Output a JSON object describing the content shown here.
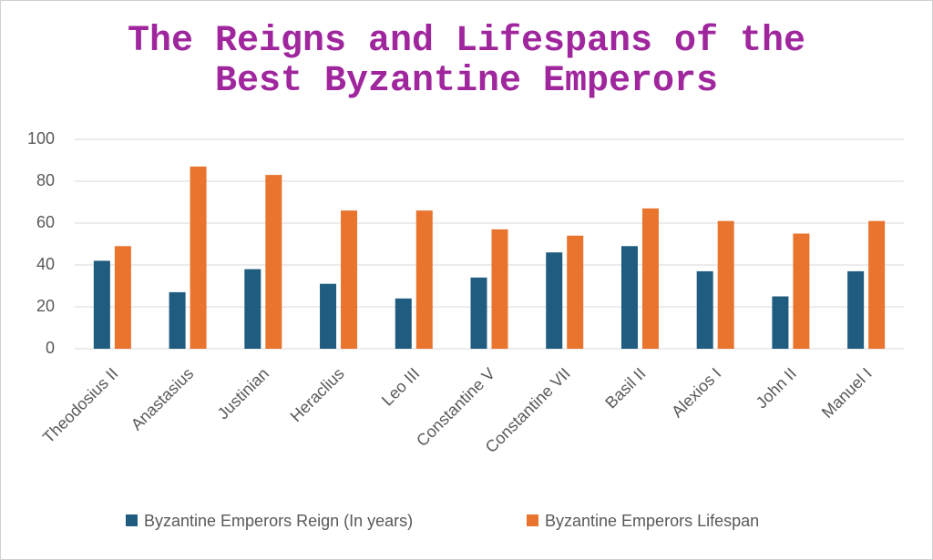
{
  "chart_data": {
    "type": "bar",
    "title": "The Reigns and Lifespans of the Best Byzantine Emperors",
    "categories": [
      "Theodosius II",
      "Anastasius",
      "Justinian",
      "Heraclius",
      "Leo III",
      "Constantine V",
      "Constantine VII",
      "Basil II",
      "Alexios I",
      "John II",
      "Manuel I"
    ],
    "series": [
      {
        "name": "Byzantine Emperors Reign (In years)",
        "color": "#1f5c7f",
        "values": [
          42,
          27,
          38,
          31,
          24,
          34,
          46,
          49,
          37,
          25,
          37
        ]
      },
      {
        "name": "Byzantine Emperors Lifespan",
        "color": "#e9742e",
        "values": [
          49,
          87,
          83,
          66,
          66,
          57,
          54,
          67,
          61,
          55,
          61
        ]
      }
    ],
    "ylim": [
      0,
      100
    ],
    "yticks": [
      0,
      20,
      40,
      60,
      80,
      100
    ],
    "grid": true,
    "legend": "bottom"
  }
}
